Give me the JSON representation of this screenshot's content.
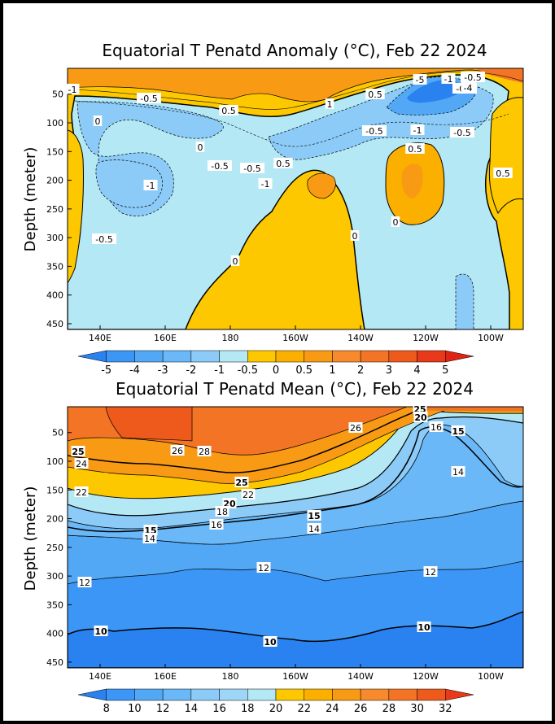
{
  "chart_data": [
    {
      "type": "heatmap",
      "title": "Equatorial T Penatd Anomaly (°C), Feb 22 2024",
      "xlabel": "",
      "ylabel": "Depth (meter)",
      "x_ticks": [
        "140E",
        "160E",
        "180",
        "160W",
        "140W",
        "120W",
        "100W"
      ],
      "y_ticks": [
        "50",
        "100",
        "150",
        "200",
        "250",
        "300",
        "350",
        "400",
        "450"
      ],
      "xlim_deg_east": [
        130,
        270
      ],
      "ylim_m": [
        460,
        5
      ],
      "colorbar_levels": [
        "-5",
        "-4",
        "-3",
        "-2",
        "-1",
        "-0.5",
        "0",
        "0.5",
        "1",
        "2",
        "3",
        "4",
        "5"
      ],
      "colorbar_colors": [
        "#2a82f0",
        "#3c96f5",
        "#52a8f5",
        "#6ab8f7",
        "#8ccbf7",
        "#b4e8f4",
        "#fdc800",
        "#fbb000",
        "#f99a14",
        "#f68a2c",
        "#f27424",
        "#ee5a1c",
        "#e8391a",
        "#e02414"
      ],
      "contour_labels": [
        "-1",
        "-0.5",
        "0",
        "0.5",
        "-0.5",
        "1",
        "0.5",
        "-5",
        "-1",
        "-0.5",
        "0",
        "-0.5",
        "0.5",
        "-1",
        "-0.5",
        "-1",
        "0",
        "-0.5",
        "0",
        "0.5",
        "-1",
        "-0.5",
        "-0.5",
        "0",
        "0",
        "0.5",
        "-4"
      ]
    },
    {
      "type": "heatmap",
      "title": "Equatorial T Penatd Mean (°C), Feb 22 2024",
      "xlabel": "",
      "ylabel": "Depth (meter)",
      "x_ticks": [
        "140E",
        "160E",
        "180",
        "160W",
        "140W",
        "120W",
        "100W"
      ],
      "y_ticks": [
        "50",
        "100",
        "150",
        "200",
        "250",
        "300",
        "350",
        "400",
        "450"
      ],
      "xlim_deg_east": [
        130,
        270
      ],
      "ylim_m": [
        460,
        5
      ],
      "colorbar_levels": [
        "8",
        "10",
        "12",
        "14",
        "16",
        "18",
        "20",
        "22",
        "24",
        "26",
        "28",
        "30",
        "32"
      ],
      "colorbar_colors": [
        "#2a82f0",
        "#3c96f5",
        "#52a8f5",
        "#6ab8f7",
        "#8ccbf7",
        "#9ed6f8",
        "#b4e8f4",
        "#fdc800",
        "#fbb000",
        "#f99a14",
        "#f68a2c",
        "#f27424",
        "#ee5a1c",
        "#e8391a"
      ],
      "contour_labels": [
        "25",
        "24",
        "22",
        "26",
        "28",
        "25",
        "22",
        "20",
        "18",
        "16",
        "15",
        "14",
        "15",
        "14",
        "12",
        "12",
        "12",
        "10",
        "10",
        "10",
        "26",
        "25",
        "20",
        "16",
        "15",
        "14"
      ]
    }
  ]
}
